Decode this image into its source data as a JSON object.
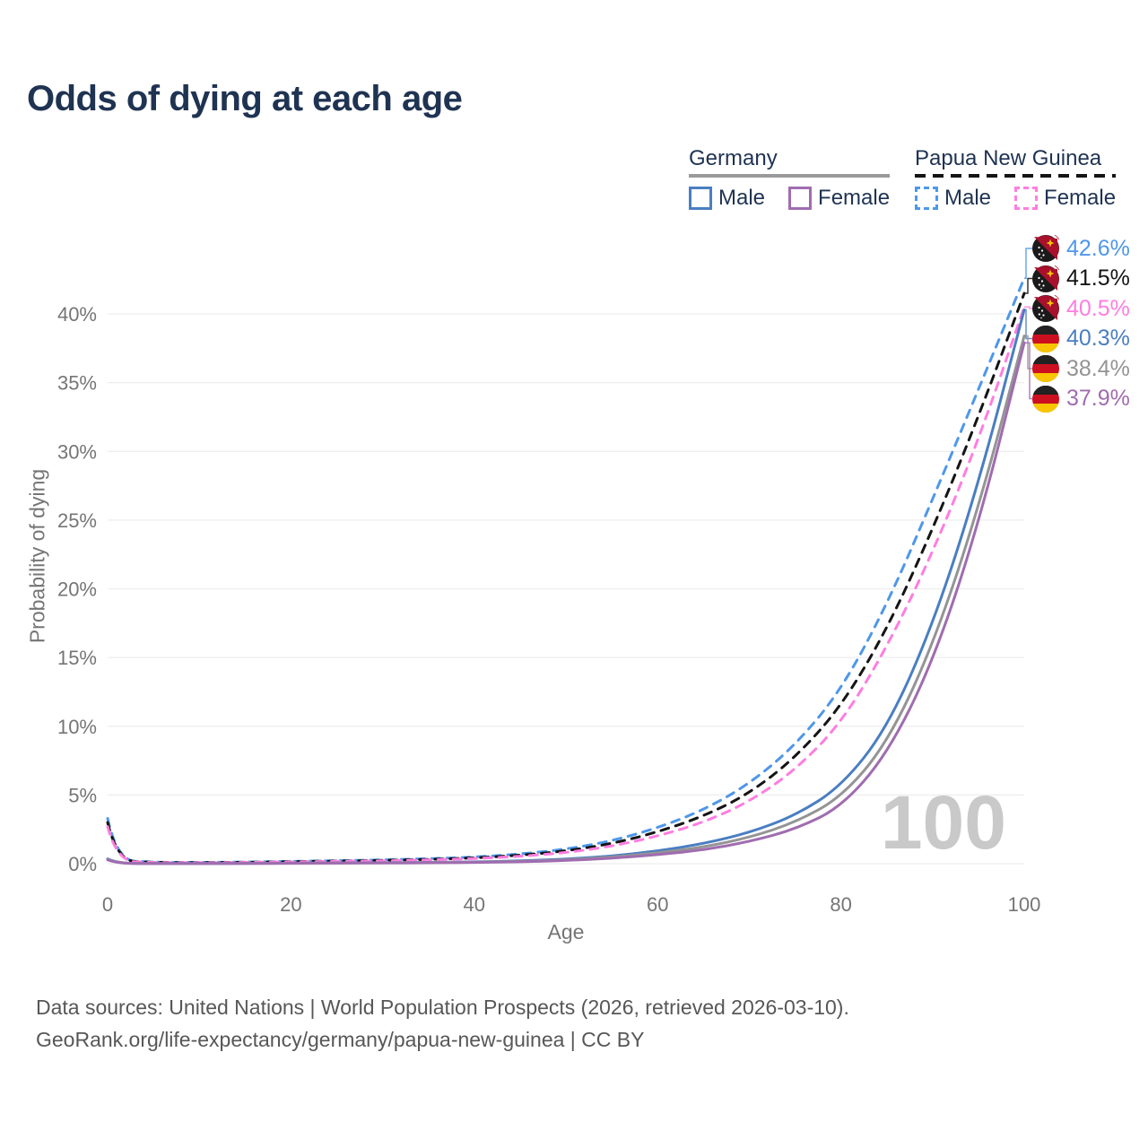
{
  "title": "Odds of dying at each age",
  "legend": {
    "germany": {
      "label": "Germany",
      "male": "Male",
      "female": "Female"
    },
    "png": {
      "label": "Papua New Guinea",
      "male": "Male",
      "female": "Female"
    }
  },
  "colors": {
    "title_navy": "#1f3352",
    "axis_gray": "#757575",
    "grid_gray": "#ededed",
    "watermark_gray": "#c9c9c9",
    "germany_underline": "#9a9a9a",
    "png_underline": "#141414"
  },
  "chart_data": {
    "type": "line",
    "title": "Odds of dying at each age",
    "xlabel": "Age",
    "ylabel": "Probability of dying",
    "xlim": [
      0,
      100
    ],
    "ylim": [
      0,
      44
    ],
    "x_ticks": [
      0,
      20,
      40,
      60,
      80,
      100
    ],
    "y_ticks": [
      0,
      5,
      10,
      15,
      20,
      25,
      30,
      35,
      40
    ],
    "y_tick_suffix": "%",
    "grid": "horizontal",
    "legend_position": "top-right",
    "watermark": "100",
    "x": [
      0,
      1,
      5,
      10,
      15,
      20,
      25,
      30,
      35,
      40,
      45,
      50,
      55,
      60,
      65,
      70,
      75,
      80,
      85,
      90,
      95,
      100
    ],
    "series": [
      {
        "name": "Papua New Guinea Male",
        "country": "Papua New Guinea",
        "sex": "Male",
        "line_style": "dashed",
        "color": "#4e97ea",
        "end_label": "42.6%",
        "values": [
          3.3,
          0.25,
          0.1,
          0.09,
          0.12,
          0.17,
          0.22,
          0.28,
          0.36,
          0.48,
          0.7,
          1.05,
          1.65,
          2.6,
          3.9,
          5.8,
          8.6,
          12.6,
          18.8,
          26.5,
          34.5,
          42.6
        ]
      },
      {
        "name": "Papua New Guinea Both sexes",
        "country": "Papua New Guinea",
        "sex": "Both",
        "line_style": "dashed",
        "color": "#141414",
        "end_label": "41.5%",
        "values": [
          3.0,
          0.22,
          0.09,
          0.08,
          0.1,
          0.15,
          0.19,
          0.24,
          0.31,
          0.42,
          0.61,
          0.92,
          1.45,
          2.3,
          3.45,
          5.1,
          7.7,
          11.4,
          17.0,
          24.3,
          32.5,
          41.5
        ]
      },
      {
        "name": "Papua New Guinea Female",
        "country": "Papua New Guinea",
        "sex": "Female",
        "line_style": "dashed",
        "color": "#ff7de0",
        "end_label": "40.5%",
        "values": [
          2.7,
          0.19,
          0.08,
          0.07,
          0.09,
          0.13,
          0.17,
          0.21,
          0.27,
          0.37,
          0.53,
          0.8,
          1.26,
          2.0,
          3.0,
          4.5,
          6.8,
          10.2,
          15.7,
          22.6,
          30.8,
          40.5
        ]
      },
      {
        "name": "Germany Male",
        "country": "Germany",
        "sex": "Male",
        "line_style": "solid",
        "color": "#4a7ec2",
        "end_label": "40.3%",
        "values": [
          0.35,
          0.03,
          0.01,
          0.01,
          0.02,
          0.05,
          0.06,
          0.07,
          0.09,
          0.13,
          0.2,
          0.33,
          0.55,
          0.92,
          1.45,
          2.25,
          3.5,
          5.6,
          9.8,
          17.3,
          27.6,
          40.3
        ]
      },
      {
        "name": "Germany Both sexes",
        "country": "Germany",
        "sex": "Both",
        "line_style": "solid",
        "color": "#949494",
        "end_label": "38.4%",
        "values": [
          0.31,
          0.026,
          0.009,
          0.009,
          0.017,
          0.04,
          0.05,
          0.06,
          0.08,
          0.11,
          0.17,
          0.28,
          0.47,
          0.78,
          1.2,
          1.9,
          3.0,
          4.8,
          8.7,
          15.8,
          25.8,
          38.4
        ]
      },
      {
        "name": "Germany Female",
        "country": "Germany",
        "sex": "Female",
        "line_style": "solid",
        "color": "#a06cb0",
        "end_label": "37.9%",
        "values": [
          0.28,
          0.022,
          0.008,
          0.008,
          0.014,
          0.03,
          0.04,
          0.05,
          0.06,
          0.09,
          0.14,
          0.23,
          0.39,
          0.65,
          1.0,
          1.6,
          2.5,
          4.1,
          7.9,
          14.6,
          24.6,
          37.9
        ]
      }
    ]
  },
  "footer": {
    "line1": "Data sources: United Nations | World Population Prospects (2026, retrieved 2026-03-10).",
    "line2": "GeoRank.org/life-expectancy/germany/papua-new-guinea | CC BY"
  }
}
